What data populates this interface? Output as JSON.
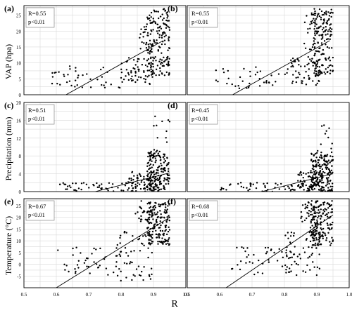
{
  "figure": {
    "xlabel": "R",
    "ylabels": [
      "VAP (hpa)",
      "Precipitation (mm)",
      "Temperature (°C)"
    ],
    "x_ticks": [
      "0.5",
      "0.6",
      "0.7",
      "0.8",
      "0.9",
      "1.0"
    ],
    "row_ticks": [
      [
        "0",
        "5",
        "10",
        "15",
        "20",
        "25"
      ],
      [
        "0",
        "4",
        "8",
        "12",
        "16",
        "20"
      ],
      [
        "-5",
        "0",
        "5",
        "10",
        "15",
        "20",
        "25"
      ]
    ],
    "grid": true,
    "legend_position": "top-left"
  },
  "chart_data": [
    {
      "type": "scatter",
      "panel": "(a)",
      "stats": [
        "R=0.55",
        "p<0.01"
      ],
      "xlim": [
        0.5,
        1.0
      ],
      "ylim": [
        0,
        28
      ],
      "trend": [
        [
          0.63,
          0.0
        ],
        [
          0.93,
          17.0
        ]
      ],
      "clusters": [
        {
          "count": 40,
          "x": [
            0.58,
            0.8
          ],
          "y": [
            2,
            9
          ],
          "seed": 11
        },
        {
          "count": 60,
          "x": [
            0.8,
            0.9
          ],
          "y": [
            3,
            12
          ],
          "seed": 12
        },
        {
          "count": 170,
          "x": [
            0.88,
            0.95
          ],
          "y": [
            6,
            27
          ],
          "seed": 13
        },
        {
          "count": 25,
          "x": [
            0.85,
            0.9
          ],
          "y": [
            14,
            26
          ],
          "seed": 14
        }
      ]
    },
    {
      "type": "scatter",
      "panel": "(b)",
      "stats": [
        "R=0.55",
        "p<0.01"
      ],
      "xlim": [
        0.5,
        1.0
      ],
      "ylim": [
        0,
        28
      ],
      "trend": [
        [
          0.64,
          0.0
        ],
        [
          0.94,
          17.0
        ]
      ],
      "clusters": [
        {
          "count": 40,
          "x": [
            0.58,
            0.82
          ],
          "y": [
            2,
            9
          ],
          "seed": 21
        },
        {
          "count": 60,
          "x": [
            0.82,
            0.91
          ],
          "y": [
            3,
            12
          ],
          "seed": 22
        },
        {
          "count": 170,
          "x": [
            0.89,
            0.95
          ],
          "y": [
            6,
            27
          ],
          "seed": 23
        },
        {
          "count": 25,
          "x": [
            0.86,
            0.91
          ],
          "y": [
            14,
            26
          ],
          "seed": 24
        }
      ]
    },
    {
      "type": "scatter",
      "panel": "(c)",
      "stats": [
        "R=0.51",
        "p<0.01"
      ],
      "xlim": [
        0.5,
        1.0
      ],
      "ylim": [
        0,
        20
      ],
      "trend": [
        [
          0.72,
          0.0
        ],
        [
          0.95,
          4.2
        ]
      ],
      "clusters": [
        {
          "count": 50,
          "x": [
            0.6,
            0.85
          ],
          "y": [
            0,
            2
          ],
          "seed": 31
        },
        {
          "count": 80,
          "x": [
            0.82,
            0.92
          ],
          "y": [
            0,
            4.5
          ],
          "seed": 32
        },
        {
          "count": 170,
          "x": [
            0.88,
            0.95
          ],
          "y": [
            0,
            9
          ],
          "seed": 33
        },
        {
          "count": 12,
          "x": [
            0.9,
            0.95
          ],
          "y": [
            9,
            17.5
          ],
          "seed": 34
        }
      ]
    },
    {
      "type": "scatter",
      "panel": "(d)",
      "stats": [
        "R=0.45",
        "p<0.01"
      ],
      "xlim": [
        0.5,
        1.0
      ],
      "ylim": [
        0,
        20
      ],
      "trend": [
        [
          0.73,
          0.0
        ],
        [
          0.95,
          4.0
        ]
      ],
      "clusters": [
        {
          "count": 50,
          "x": [
            0.6,
            0.86
          ],
          "y": [
            0,
            2
          ],
          "seed": 41
        },
        {
          "count": 80,
          "x": [
            0.84,
            0.92
          ],
          "y": [
            0,
            4.5
          ],
          "seed": 42
        },
        {
          "count": 170,
          "x": [
            0.88,
            0.95
          ],
          "y": [
            0,
            9
          ],
          "seed": 43
        },
        {
          "count": 10,
          "x": [
            0.9,
            0.95
          ],
          "y": [
            9,
            15
          ],
          "seed": 44
        }
      ]
    },
    {
      "type": "scatter",
      "panel": "(e)",
      "stats": [
        "R=0.67",
        "p<0.01"
      ],
      "xlim": [
        0.5,
        1.0
      ],
      "ylim": [
        -10,
        28
      ],
      "trend": [
        [
          0.6,
          -10.0
        ],
        [
          0.95,
          20.0
        ]
      ],
      "clusters": [
        {
          "count": 40,
          "x": [
            0.6,
            0.8
          ],
          "y": [
            -5,
            8
          ],
          "seed": 51
        },
        {
          "count": 60,
          "x": [
            0.78,
            0.9
          ],
          "y": [
            -7,
            14
          ],
          "seed": 52
        },
        {
          "count": 180,
          "x": [
            0.88,
            0.95
          ],
          "y": [
            8,
            27
          ],
          "seed": 53
        },
        {
          "count": 25,
          "x": [
            0.84,
            0.9
          ],
          "y": [
            18,
            27
          ],
          "seed": 54
        }
      ]
    },
    {
      "type": "scatter",
      "panel": "(f)",
      "stats": [
        "R=0.68",
        "p<0.01"
      ],
      "xlim": [
        0.5,
        1.0
      ],
      "ylim": [
        -10,
        28
      ],
      "trend": [
        [
          0.62,
          -10.0
        ],
        [
          0.95,
          21.0
        ]
      ],
      "clusters": [
        {
          "count": 40,
          "x": [
            0.63,
            0.82
          ],
          "y": [
            -5,
            8
          ],
          "seed": 61
        },
        {
          "count": 60,
          "x": [
            0.8,
            0.91
          ],
          "y": [
            -5,
            14
          ],
          "seed": 62
        },
        {
          "count": 180,
          "x": [
            0.88,
            0.95
          ],
          "y": [
            8,
            27
          ],
          "seed": 63
        },
        {
          "count": 25,
          "x": [
            0.85,
            0.9
          ],
          "y": [
            18,
            27
          ],
          "seed": 64
        }
      ]
    }
  ]
}
